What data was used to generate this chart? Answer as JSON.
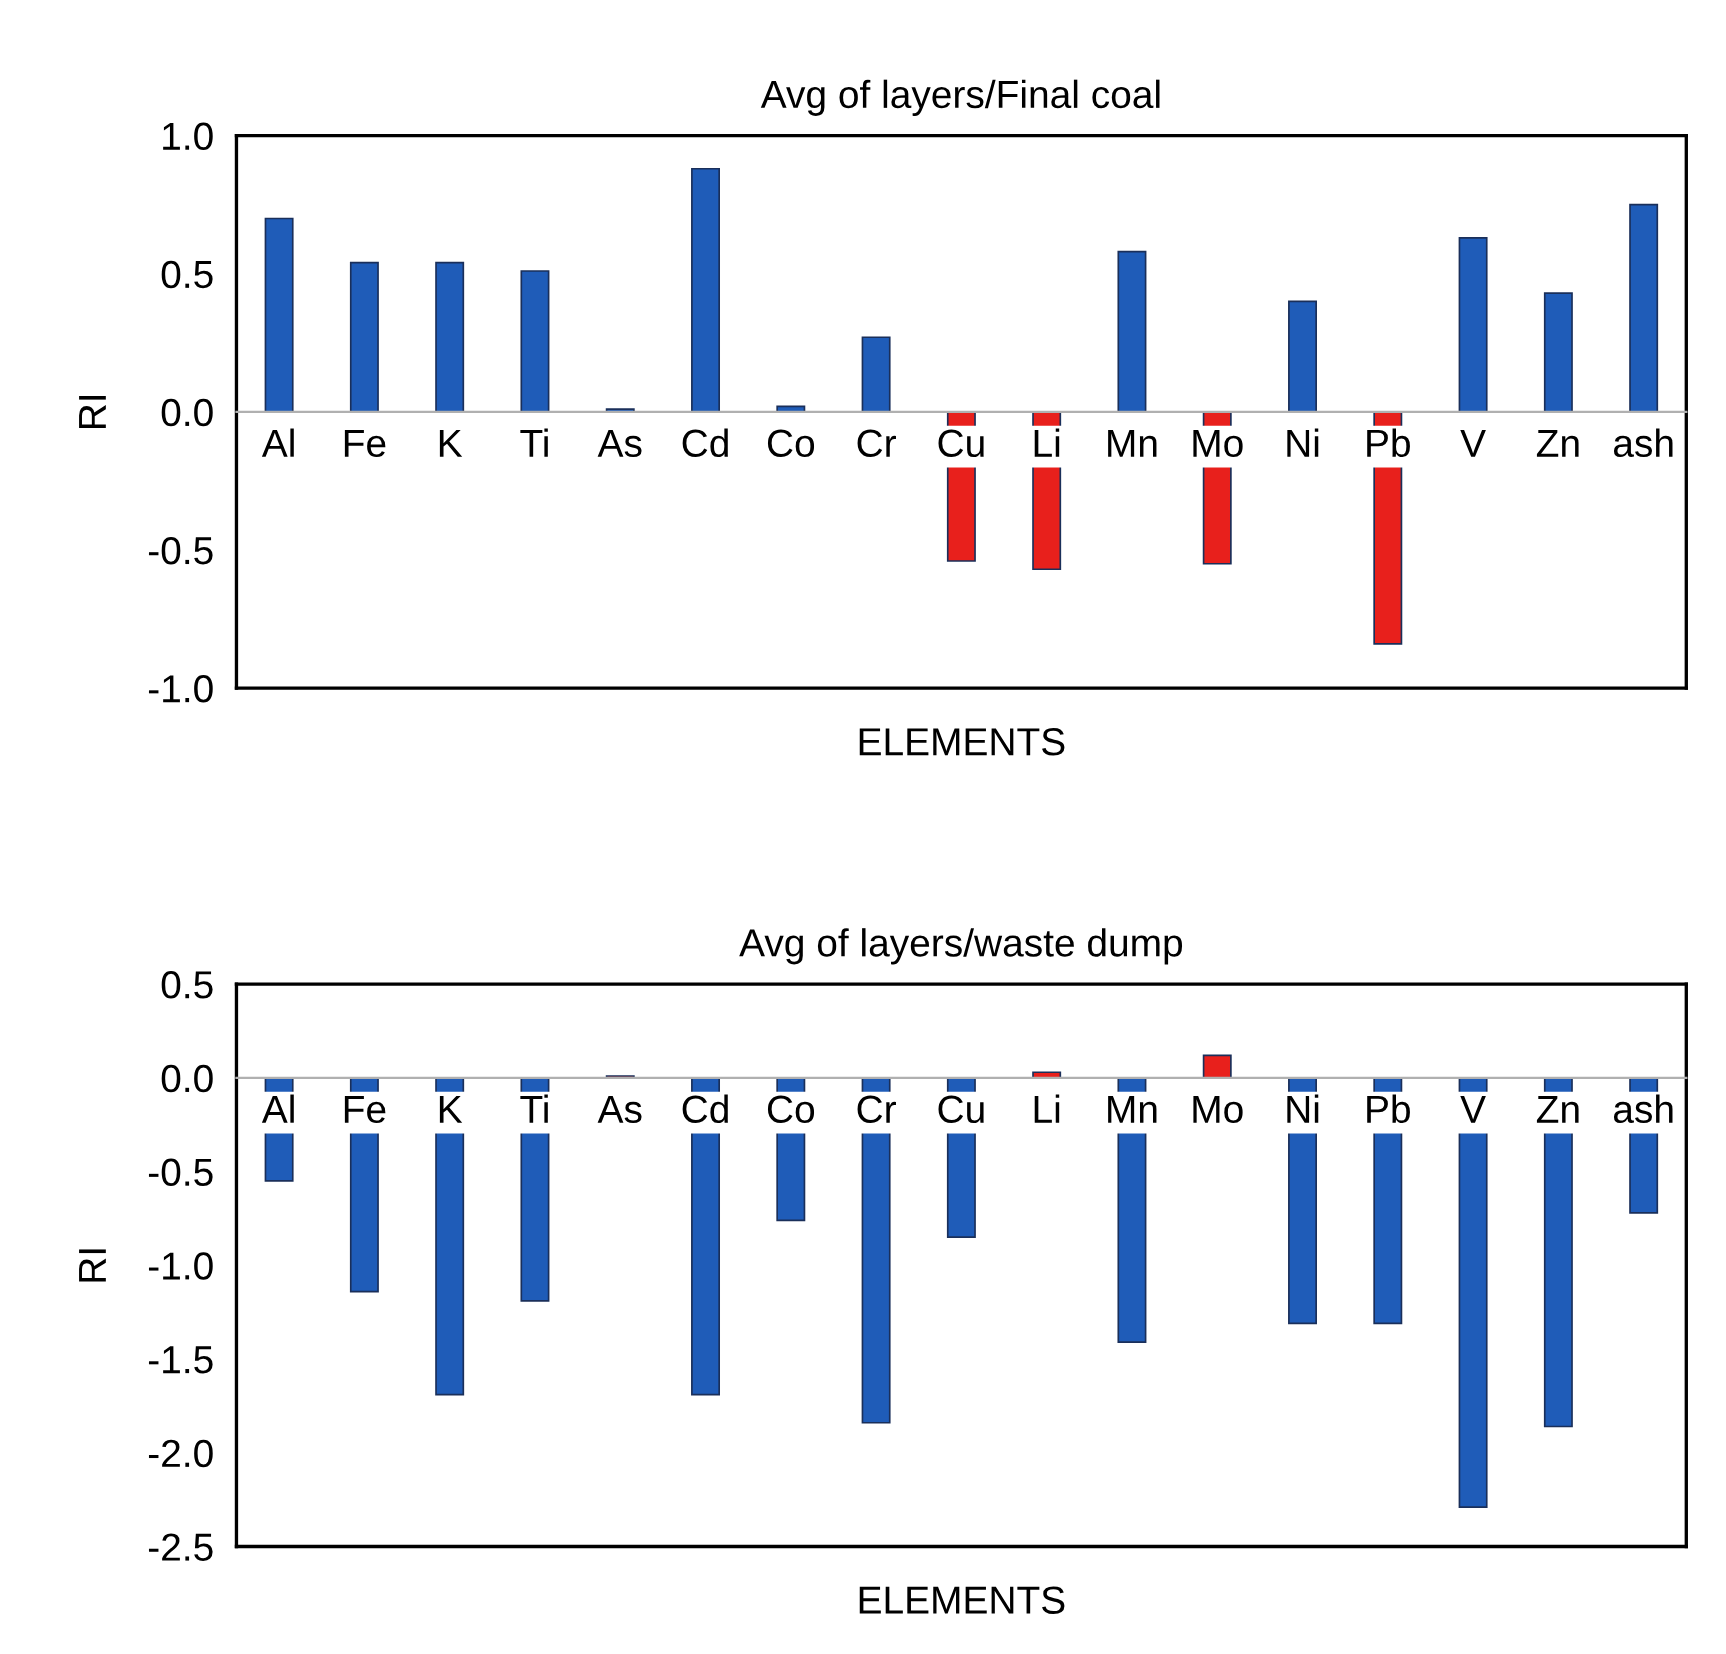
{
  "chart_data": [
    {
      "type": "bar",
      "title": "Avg of layers/Final coal",
      "xlabel": "ELEMENTS",
      "ylabel": "RI",
      "categories": [
        "Al",
        "Fe",
        "K",
        "Ti",
        "As",
        "Cd",
        "Co",
        "Cr",
        "Cu",
        "Li",
        "Mn",
        "Mo",
        "Ni",
        "Pb",
        "V",
        "Zn",
        "ash"
      ],
      "values": [
        0.7,
        0.54,
        0.54,
        0.51,
        0.01,
        0.88,
        0.02,
        0.27,
        -0.54,
        -0.57,
        0.58,
        -0.55,
        0.4,
        -0.84,
        0.63,
        0.43,
        0.75
      ],
      "colors": [
        "#1f5cb8",
        "#1f5cb8",
        "#1f5cb8",
        "#1f5cb8",
        "#1f5cb8",
        "#1f5cb8",
        "#1f5cb8",
        "#1f5cb8",
        "#e8201c",
        "#e8201c",
        "#1f5cb8",
        "#e8201c",
        "#1f5cb8",
        "#e8201c",
        "#1f5cb8",
        "#1f5cb8",
        "#1f5cb8"
      ],
      "ylim": [
        -1.0,
        1.0
      ],
      "yticks": [
        {
          "value": -1.0,
          "label": "-1.0"
        },
        {
          "value": -0.5,
          "label": "-0.5"
        },
        {
          "value": 0.0,
          "label": "0.0"
        },
        {
          "value": 0.5,
          "label": "0.5"
        },
        {
          "value": 1.0,
          "label": "1.0"
        }
      ],
      "grid": false
    },
    {
      "type": "bar",
      "title": "Avg of layers/waste dump",
      "xlabel": "ELEMENTS",
      "ylabel": "RI",
      "categories": [
        "Al",
        "Fe",
        "K",
        "Ti",
        "As",
        "Cd",
        "Co",
        "Cr",
        "Cu",
        "Li",
        "Mn",
        "Mo",
        "Ni",
        "Pb",
        "V",
        "Zn",
        "ash"
      ],
      "values": [
        -0.55,
        -1.14,
        -1.69,
        -1.19,
        0.01,
        -1.69,
        -0.76,
        -1.84,
        -0.85,
        0.03,
        -1.41,
        0.12,
        -1.31,
        -1.31,
        -2.29,
        -1.86,
        -0.72
      ],
      "colors": [
        "#1f5cb8",
        "#1f5cb8",
        "#1f5cb8",
        "#1f5cb8",
        "#e8201c",
        "#1f5cb8",
        "#1f5cb8",
        "#1f5cb8",
        "#1f5cb8",
        "#e8201c",
        "#1f5cb8",
        "#e8201c",
        "#1f5cb8",
        "#1f5cb8",
        "#1f5cb8",
        "#1f5cb8",
        "#1f5cb8"
      ],
      "ylim": [
        -2.5,
        0.5
      ],
      "yticks": [
        {
          "value": -2.5,
          "label": "-2.5"
        },
        {
          "value": -2.0,
          "label": "-2.0"
        },
        {
          "value": -1.5,
          "label": "-1.5"
        },
        {
          "value": -1.0,
          "label": "-1.0"
        },
        {
          "value": -0.5,
          "label": "-0.5"
        },
        {
          "value": 0.0,
          "label": "0.0"
        },
        {
          "value": 0.5,
          "label": "0.5"
        }
      ],
      "grid": false
    }
  ]
}
